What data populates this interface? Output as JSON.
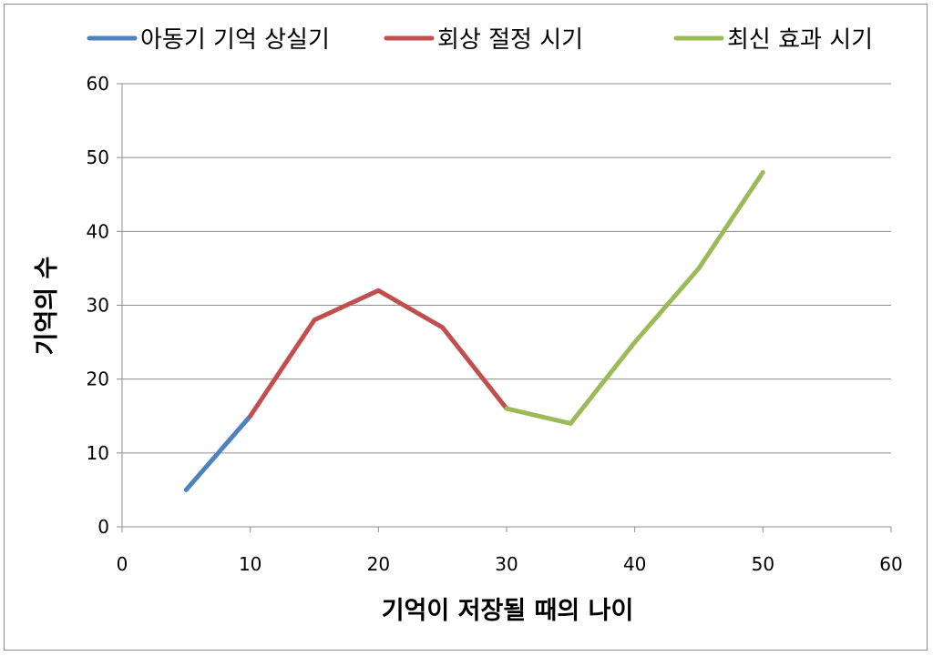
{
  "chart_data": {
    "type": "line",
    "title": "",
    "xlabel": "기억이 저장될 때의 나이",
    "ylabel": "기억의 수",
    "xlim": [
      0,
      60
    ],
    "ylim": [
      0,
      60
    ],
    "x_ticks": [
      0,
      10,
      20,
      30,
      40,
      50,
      60
    ],
    "y_ticks": [
      0,
      10,
      20,
      30,
      40,
      50,
      60
    ],
    "grid": "horizontal",
    "legend_position": "top",
    "series": [
      {
        "name": "아동기 기억 상실기",
        "color": "#4f81bd",
        "points": [
          [
            5,
            5
          ],
          [
            10,
            15
          ]
        ]
      },
      {
        "name": "회상 절정 시기",
        "color": "#c0504d",
        "points": [
          [
            10,
            15
          ],
          [
            15,
            28
          ],
          [
            20,
            32
          ],
          [
            25,
            27
          ],
          [
            30,
            16
          ]
        ]
      },
      {
        "name": "최신 효과 시기",
        "color": "#9bbb59",
        "points": [
          [
            30,
            16
          ],
          [
            35,
            14
          ],
          [
            40,
            25
          ],
          [
            45,
            35
          ],
          [
            50,
            48
          ]
        ]
      }
    ]
  }
}
